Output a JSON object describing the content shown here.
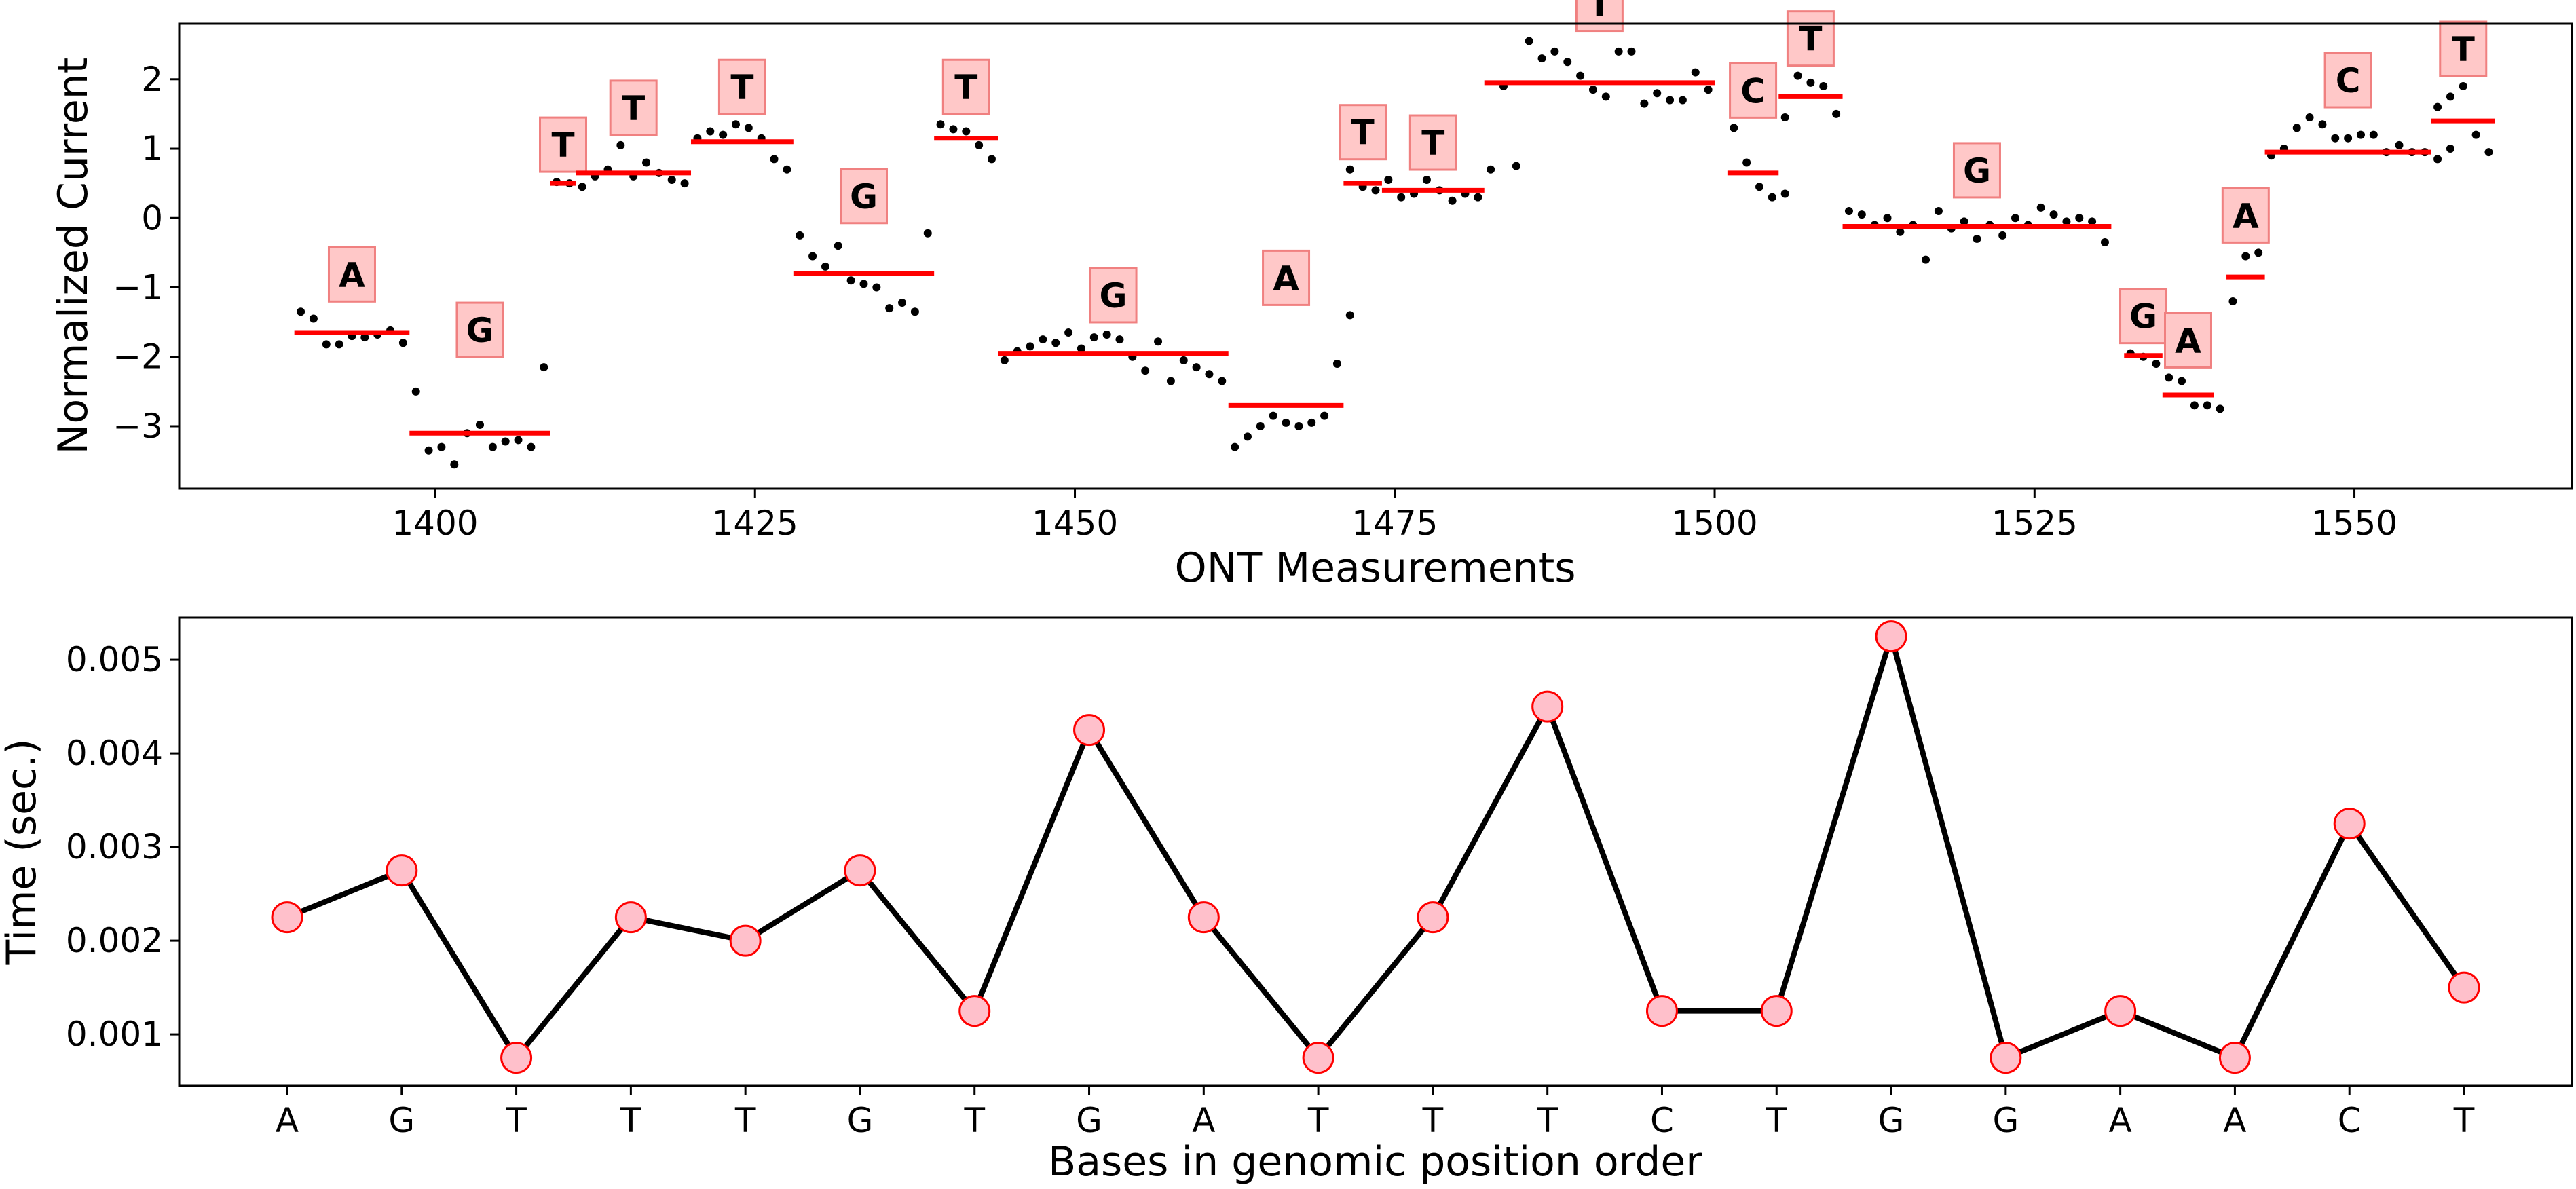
{
  "chart_data": [
    {
      "type": "scatter",
      "xlabel": "ONT Measurements",
      "ylabel": "Normalized Current",
      "xlim": [
        1380,
        1567
      ],
      "ylim": [
        -3.9,
        2.8
      ],
      "xticks": [
        1400,
        1425,
        1450,
        1475,
        1500,
        1525,
        1550
      ],
      "yticks": [
        -3,
        -2,
        -1,
        0,
        1,
        2
      ],
      "grid": false,
      "colors": {
        "points": "#000000",
        "segment_line": "#ff0000",
        "label_face": "#ffc8c8",
        "label_edge": "#f08080"
      },
      "segments": [
        {
          "base": "A",
          "x_start": 1389,
          "x_end": 1398,
          "level": -1.65,
          "points": [
            -1.35,
            -1.45,
            -1.82,
            -1.82,
            -1.7,
            -1.72,
            -1.68,
            -1.62,
            -1.8
          ]
        },
        {
          "base": "G",
          "x_start": 1398,
          "x_end": 1409,
          "level": -3.1,
          "points": [
            -2.5,
            -3.35,
            -3.3,
            -3.55,
            -3.1,
            -2.98,
            -3.3,
            -3.22,
            -3.2,
            -3.3,
            -2.15
          ]
        },
        {
          "base": "T",
          "x_start": 1409,
          "x_end": 1411,
          "level": 0.5,
          "points": [
            0.52,
            0.5
          ]
        },
        {
          "base": "T",
          "x_start": 1411,
          "x_end": 1420,
          "level": 0.65,
          "points": [
            0.45,
            0.6,
            0.7,
            1.05,
            0.6,
            0.8,
            0.65,
            0.55,
            0.5
          ]
        },
        {
          "base": "T",
          "x_start": 1420,
          "x_end": 1428,
          "level": 1.1,
          "points": [
            1.15,
            1.25,
            1.2,
            1.35,
            1.3,
            1.15,
            0.85,
            0.7
          ]
        },
        {
          "base": "G",
          "x_start": 1428,
          "x_end": 1439,
          "level": -0.8,
          "points": [
            -0.25,
            -0.55,
            -0.7,
            -0.4,
            -0.9,
            -0.95,
            -1.0,
            -1.3,
            -1.22,
            -1.35,
            -0.22
          ]
        },
        {
          "base": "T",
          "x_start": 1439,
          "x_end": 1444,
          "level": 1.15,
          "points": [
            1.35,
            1.28,
            1.25,
            1.05,
            0.85
          ]
        },
        {
          "base": "G",
          "x_start": 1444,
          "x_end": 1462,
          "level": -1.95,
          "points": [
            -2.05,
            -1.92,
            -1.85,
            -1.75,
            -1.8,
            -1.65,
            -1.88,
            -1.72,
            -1.68,
            -1.75,
            -2.0,
            -2.2,
            -1.78,
            -2.35,
            -2.05,
            -2.15,
            -2.25,
            -2.35
          ]
        },
        {
          "base": "A",
          "x_start": 1462,
          "x_end": 1471,
          "level": -2.7,
          "points": [
            -3.3,
            -3.15,
            -3.0,
            -2.85,
            -2.95,
            -3.0,
            -2.95,
            -2.85,
            -2.1,
            -1.4
          ]
        },
        {
          "base": "T",
          "x_start": 1471,
          "x_end": 1474,
          "level": 0.5,
          "points": [
            0.7,
            0.45,
            0.4
          ]
        },
        {
          "base": "T",
          "x_start": 1474,
          "x_end": 1482,
          "level": 0.4,
          "points": [
            0.55,
            0.3,
            0.35,
            0.55,
            0.4,
            0.25,
            0.35,
            0.3
          ]
        },
        {
          "base": "T",
          "x_start": 1482,
          "x_end": 1500,
          "level": 1.95,
          "points": [
            0.7,
            1.9,
            0.75,
            2.55,
            2.3,
            2.4,
            2.25,
            2.05,
            1.85,
            1.75,
            2.4,
            2.4,
            1.65,
            1.8,
            1.7,
            1.7,
            2.1,
            1.85
          ]
        },
        {
          "base": "C",
          "x_start": 1501,
          "x_end": 1505,
          "level": 0.65,
          "points": [
            1.3,
            0.8,
            0.45,
            0.3,
            0.35
          ]
        },
        {
          "base": "T",
          "x_start": 1505,
          "x_end": 1510,
          "level": 1.75,
          "points": [
            1.45,
            2.05,
            1.95,
            1.9,
            1.5
          ]
        },
        {
          "base": "G",
          "x_start": 1510,
          "x_end": 1531,
          "level": -0.12,
          "points": [
            0.1,
            0.05,
            -0.1,
            0.0,
            -0.2,
            -0.1,
            -0.6,
            0.1,
            -0.15,
            -0.05,
            -0.3,
            -0.1,
            -0.25,
            0.0,
            -0.1,
            0.15,
            0.05,
            -0.05,
            0.0,
            -0.05,
            -0.35
          ]
        },
        {
          "base": "G",
          "x_start": 1532,
          "x_end": 1535,
          "level": -1.98,
          "points": [
            -1.95,
            -2.0,
            -2.1
          ]
        },
        {
          "base": "A",
          "x_start": 1535,
          "x_end": 1539,
          "level": -2.55,
          "points": [
            -2.3,
            -2.35,
            -2.7,
            -2.7,
            -2.75
          ]
        },
        {
          "base": "A",
          "x_start": 1540,
          "x_end": 1543,
          "level": -0.85,
          "points": [
            -1.2,
            -0.55,
            -0.5
          ]
        },
        {
          "base": "C",
          "x_start": 1543,
          "x_end": 1556,
          "level": 0.95,
          "points": [
            0.9,
            1.0,
            1.3,
            1.45,
            1.35,
            1.15,
            1.15,
            1.2,
            1.2,
            0.95,
            1.05,
            0.95,
            0.95,
            0.85,
            1.0
          ]
        },
        {
          "base": "T",
          "x_start": 1556,
          "x_end": 1561,
          "level": 1.4,
          "points": [
            1.6,
            1.75,
            1.9,
            1.2,
            0.95
          ]
        }
      ]
    },
    {
      "type": "line",
      "xlabel": "Bases in genomic position order",
      "ylabel": "Time (sec.)",
      "ylim": [
        0.00045,
        0.00545
      ],
      "yticks": [
        "0.001",
        "0.002",
        "0.003",
        "0.004",
        "0.005"
      ],
      "grid": false,
      "colors": {
        "line": "#000000",
        "marker_face": "#ffc0cb",
        "marker_edge": "#ff0000"
      },
      "categories": [
        "A",
        "G",
        "T",
        "T",
        "T",
        "G",
        "T",
        "G",
        "A",
        "T",
        "T",
        "T",
        "C",
        "T",
        "G",
        "G",
        "A",
        "A",
        "C",
        "T"
      ],
      "values": [
        0.00225,
        0.00275,
        0.00075,
        0.00225,
        0.002,
        0.00275,
        0.00125,
        0.00425,
        0.00225,
        0.00075,
        0.00225,
        0.0045,
        0.00125,
        0.00125,
        0.00525,
        0.00075,
        0.00125,
        0.00075,
        0.00325,
        0.0015
      ]
    }
  ]
}
